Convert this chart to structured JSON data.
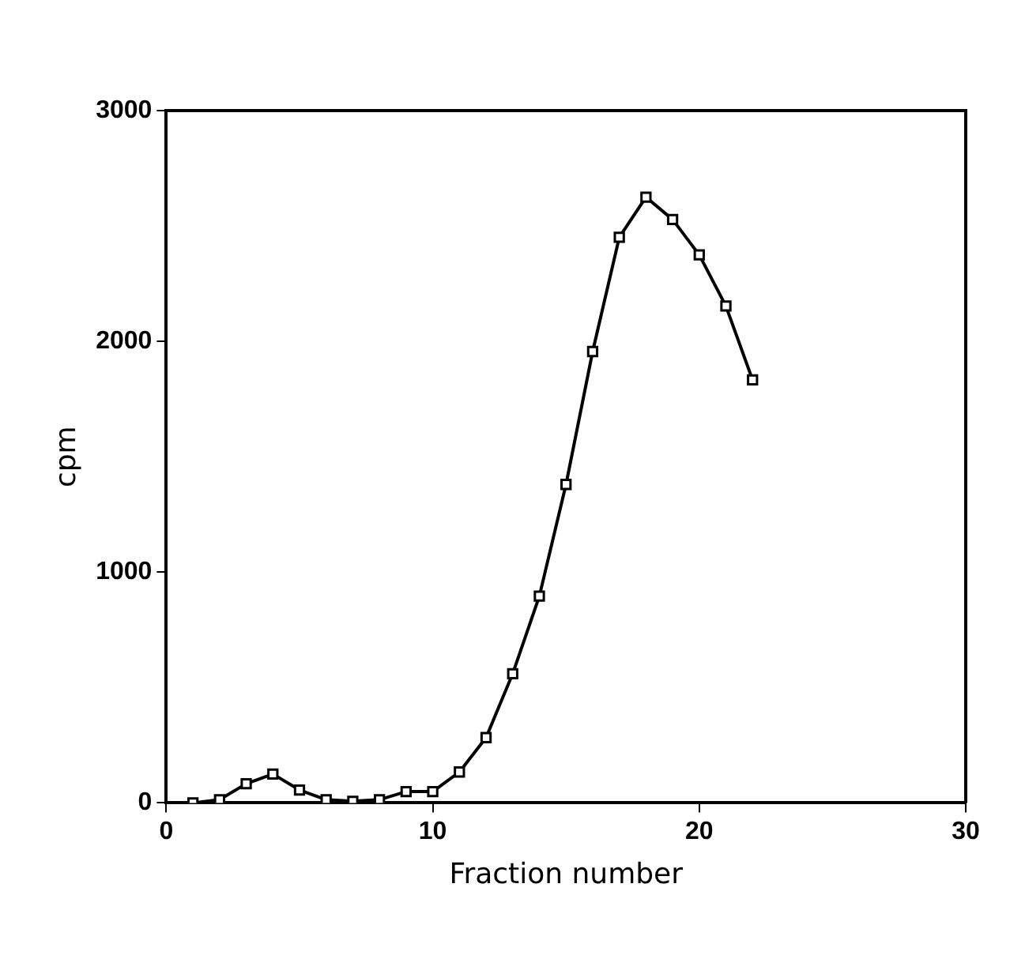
{
  "chart_data": {
    "type": "line",
    "xlabel": "Fraction number",
    "ylabel": "cpm",
    "x": [
      1,
      2,
      3,
      4,
      5,
      6,
      7,
      8,
      9,
      10,
      11,
      12,
      13,
      14,
      15,
      16,
      17,
      18,
      19,
      20,
      21,
      22
    ],
    "series": [
      {
        "color": "#000000",
        "values": [
          0,
          14,
          83,
          125,
          56,
          14,
          7,
          14,
          49,
          49,
          134,
          283,
          560,
          896,
          1380,
          1956,
          2451,
          2625,
          2528,
          2375,
          2153,
          1833
        ]
      }
    ],
    "xlim": [
      0,
      30
    ],
    "xticks": [
      0,
      10,
      20,
      30
    ],
    "ylim": [
      0,
      3000
    ],
    "yticks": [
      0,
      1000,
      2000,
      3000
    ],
    "grid": false,
    "legend": false,
    "marker": "square",
    "line_style": "solid"
  }
}
